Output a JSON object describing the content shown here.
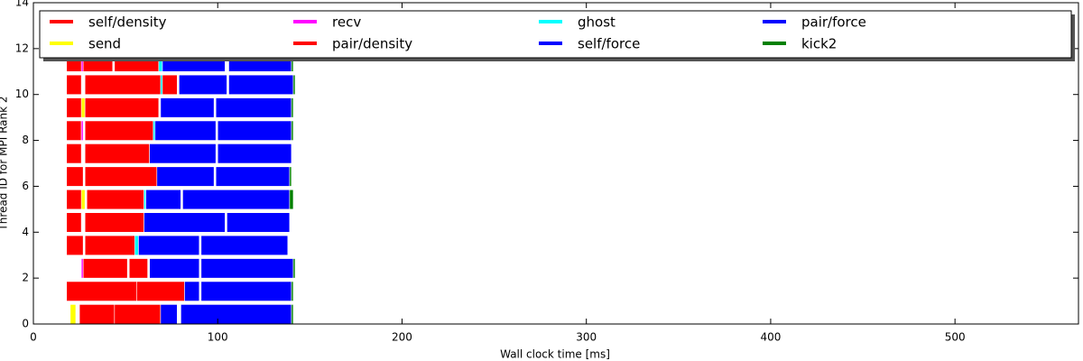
{
  "chart_data": {
    "type": "timeline",
    "xlabel": "Wall clock time [ms]",
    "ylabel": "Thread ID for MPI Rank 2",
    "xlim": [
      0,
      567
    ],
    "xticks": [
      0,
      100,
      200,
      300,
      400,
      500
    ],
    "ylim": [
      0,
      14
    ],
    "yticks": [
      0,
      2,
      4,
      6,
      8,
      10,
      12,
      14
    ],
    "legend": "top",
    "series": [
      {
        "name": "self/density",
        "color": "#ff0000",
        "values": [
          [
            0,
            25,
            44
          ],
          [
            1,
            18,
            56
          ],
          [
            2,
            27,
            51
          ],
          [
            3,
            18,
            27
          ],
          [
            4,
            18,
            26
          ],
          [
            5,
            18,
            27
          ],
          [
            6,
            18,
            27
          ],
          [
            7,
            18,
            26
          ],
          [
            8,
            18,
            26
          ],
          [
            9,
            18,
            27
          ],
          [
            10,
            18,
            26
          ],
          [
            11,
            18,
            43
          ]
        ]
      },
      {
        "name": "send",
        "color": "#ffff00",
        "values": [
          [
            0,
            20,
            23
          ],
          [
            5,
            26,
            28
          ],
          [
            9,
            26,
            28
          ]
        ]
      },
      {
        "name": "recv",
        "color": "#ff00ff",
        "values": [
          [
            2,
            26,
            27
          ],
          [
            8,
            26,
            27
          ],
          [
            11,
            26,
            27
          ]
        ]
      },
      {
        "name": "pair/density",
        "color": "#ff0000",
        "values": [
          [
            0,
            44,
            69
          ],
          [
            1,
            56,
            82
          ],
          [
            2,
            52,
            62
          ],
          [
            3,
            28,
            55
          ],
          [
            4,
            28,
            60
          ],
          [
            5,
            29,
            60
          ],
          [
            6,
            28,
            67
          ],
          [
            7,
            28,
            63
          ],
          [
            8,
            28,
            65
          ],
          [
            9,
            28,
            68
          ],
          [
            10,
            28,
            78
          ],
          [
            11,
            44,
            68
          ]
        ]
      },
      {
        "name": "ghost",
        "color": "#00ffff",
        "values": [
          [
            3,
            55,
            57
          ],
          [
            5,
            60,
            61
          ],
          [
            8,
            65,
            66
          ],
          [
            10,
            69,
            70
          ],
          [
            11,
            68,
            70
          ]
        ]
      },
      {
        "name": "self/force",
        "color": "#0000ff",
        "values": [
          [
            0,
            69,
            78
          ],
          [
            1,
            82,
            90
          ],
          [
            2,
            63,
            90
          ],
          [
            3,
            57,
            90
          ],
          [
            4,
            60,
            104
          ],
          [
            5,
            61,
            80
          ],
          [
            6,
            67,
            98
          ],
          [
            7,
            63,
            99
          ],
          [
            8,
            66,
            99
          ],
          [
            9,
            69,
            98
          ],
          [
            10,
            79,
            105
          ],
          [
            11,
            70,
            104
          ]
        ]
      },
      {
        "name": "pair/force",
        "color": "#0000ff",
        "values": [
          [
            0,
            80,
            140
          ],
          [
            1,
            91,
            140
          ],
          [
            2,
            91,
            141
          ],
          [
            3,
            91,
            138
          ],
          [
            4,
            105,
            139
          ],
          [
            5,
            81,
            139
          ],
          [
            6,
            99,
            139
          ],
          [
            7,
            100,
            140
          ],
          [
            8,
            100,
            140
          ],
          [
            9,
            99,
            140
          ],
          [
            10,
            106,
            141
          ],
          [
            11,
            106,
            140
          ]
        ]
      },
      {
        "name": "kick2",
        "color": "#008000",
        "values": [
          [
            0,
            140,
            141
          ],
          [
            1,
            140,
            141
          ],
          [
            2,
            141,
            142
          ],
          [
            5,
            139,
            141
          ],
          [
            6,
            139,
            140
          ],
          [
            8,
            140,
            141
          ],
          [
            9,
            140,
            141
          ],
          [
            10,
            141,
            142
          ],
          [
            11,
            140,
            141
          ]
        ]
      }
    ]
  }
}
